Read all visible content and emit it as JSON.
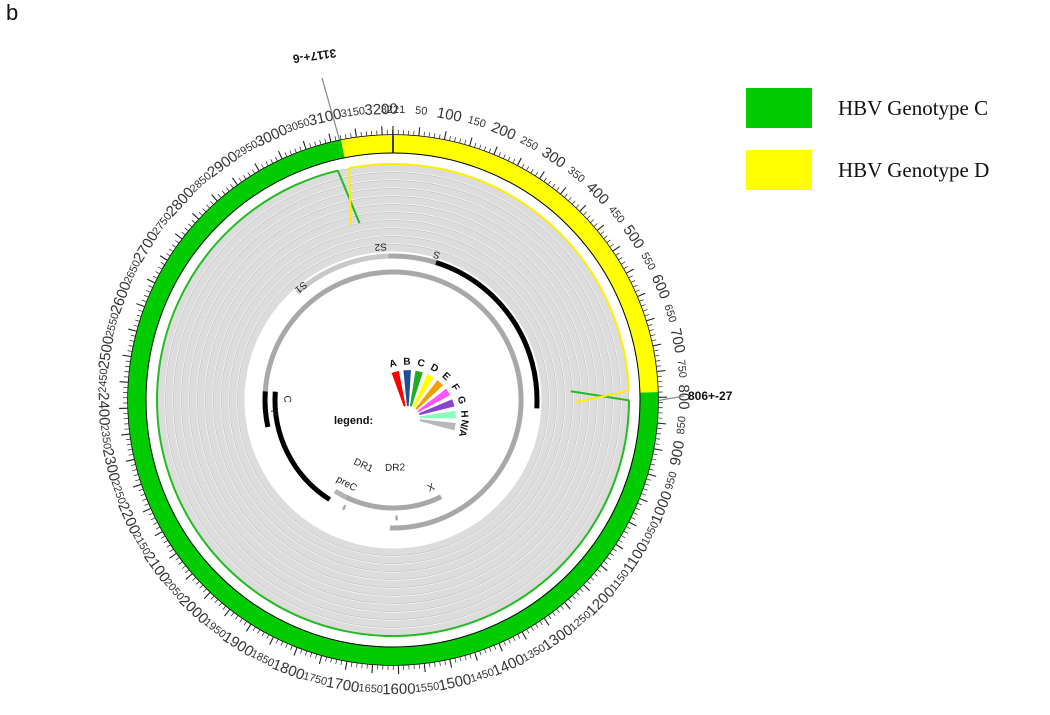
{
  "panel_label": "b",
  "legend": {
    "items": [
      {
        "label": "HBV Genotype C",
        "color": "#00cc00"
      },
      {
        "label": "HBV Genotype D",
        "color": "#ffff00"
      }
    ]
  },
  "genome": {
    "length": 3221,
    "tick_labels": [
      50,
      100,
      150,
      200,
      250,
      300,
      350,
      400,
      450,
      500,
      550,
      600,
      650,
      700,
      750,
      800,
      850,
      900,
      950,
      1000,
      1050,
      1100,
      1150,
      1200,
      1250,
      1300,
      1350,
      1400,
      1450,
      1500,
      1550,
      1600,
      1650,
      1700,
      1750,
      1800,
      1850,
      1900,
      1950,
      2000,
      2050,
      2100,
      2150,
      2200,
      2250,
      2300,
      2350,
      2400,
      2450,
      2500,
      2550,
      2600,
      2650,
      2700,
      2750,
      2800,
      2850,
      2900,
      2950,
      3000,
      3050,
      3100,
      3150,
      3200,
      3221
    ]
  },
  "outer_ring": [
    {
      "genotype": "D",
      "start": 0,
      "end": 790,
      "color": "#ffff00"
    },
    {
      "genotype": "C",
      "start": 790,
      "end": 3120,
      "color": "#00cc00"
    },
    {
      "genotype": "D",
      "start": 3120,
      "end": 3221,
      "color": "#ffff00"
    }
  ],
  "breakpoints": [
    {
      "label": "806+-27",
      "position": 806
    },
    {
      "label": "3117+-6",
      "position": 3117
    }
  ],
  "genes": [
    {
      "name": "S",
      "start": 155,
      "end": 835,
      "color": "#000000",
      "track": 0
    },
    {
      "name": "S2",
      "start": 3205,
      "end": 155,
      "color": "#a8a8a8",
      "track": 0
    },
    {
      "name": "S1",
      "start": 2848,
      "end": 3205,
      "color": "#c8c8c8",
      "track": 0
    },
    {
      "name": "P",
      "start": 2307,
      "end": 3221,
      "color": "#a8a8a8",
      "track": 1
    },
    {
      "name": "P",
      "start": 0,
      "end": 1623,
      "color": "#a8a8a8",
      "track": 1
    },
    {
      "name": "P",
      "start": 2307,
      "end": 2450,
      "color": "#000000",
      "track": 1
    },
    {
      "name": "C",
      "start": 1901,
      "end": 2452,
      "color": "#000000",
      "track": 2
    },
    {
      "name": "preC",
      "start": 1814,
      "end": 1901,
      "color": "#b4b4b4",
      "track": 3
    },
    {
      "name": "X",
      "start": 1374,
      "end": 1838,
      "color": "#a8a8a8",
      "track": 3
    },
    {
      "name": "DR1",
      "start": 1824,
      "end": 1834,
      "color": "#a8a8a8",
      "track": 2
    },
    {
      "name": "DR2",
      "start": 1590,
      "end": 1600,
      "color": "#a8a8a8",
      "track": 2
    }
  ],
  "inner_legend": {
    "title": "legend:",
    "items": [
      {
        "label": "A",
        "color": "#ff0000"
      },
      {
        "label": "B",
        "color": "#1f4e96"
      },
      {
        "label": "C",
        "color": "#22aa22"
      },
      {
        "label": "D",
        "color": "#ffff00"
      },
      {
        "label": "E",
        "color": "#f0a000"
      },
      {
        "label": "F",
        "color": "#ff55ff"
      },
      {
        "label": "G",
        "color": "#8844cc"
      },
      {
        "label": "H",
        "color": "#88ffbb"
      },
      {
        "label": "N/A",
        "color": "#b8b8b8"
      }
    ]
  }
}
